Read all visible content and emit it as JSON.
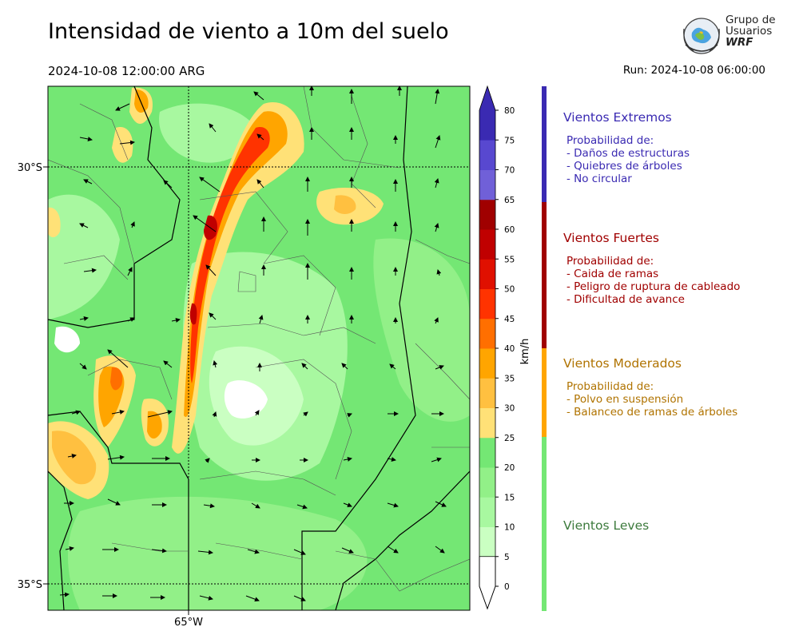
{
  "header": {
    "title": "Intensidad de viento a 10m del suelo",
    "valid_time": "2024-10-08 12:00:00 ARG",
    "run_time": "Run: 2024-10-08 06:00:00"
  },
  "logo": {
    "line1": "Grupo de",
    "line2": "Usuarios",
    "line3": "WRF"
  },
  "map": {
    "lat_labels": [
      "30°S",
      "35°S"
    ],
    "lon_labels": [
      "65°W"
    ],
    "background_color": "#74e774"
  },
  "colorbar": {
    "unit_label": "km/h",
    "ticks": [
      "0",
      "5",
      "10",
      "15",
      "20",
      "25",
      "30",
      "35",
      "40",
      "45",
      "50",
      "55",
      "60",
      "65",
      "70",
      "75",
      "80"
    ],
    "colors": [
      "#ffffff",
      "#caffc2",
      "#a8f8a0",
      "#92f088",
      "#74e774",
      "#ffe177",
      "#ffc040",
      "#ffa500",
      "#ff6f00",
      "#ff3300",
      "#e01000",
      "#c00000",
      "#a00000",
      "#7060d8",
      "#5848d0",
      "#4030c0",
      "#3a2ab2"
    ]
  },
  "categories": [
    {
      "title": "Vientos Extremos",
      "color": "#3a2ab2",
      "lines": [
        "Probabilidad de:",
        "- Daños de estructuras",
        "- Quiebres de árboles",
        "- No circular"
      ]
    },
    {
      "title": "Vientos Fuertes",
      "color": "#a00000",
      "lines": [
        "Probabilidad de:",
        "- Caida de ramas",
        "- Peligro de ruptura de cableado",
        "- Dificultad de avance"
      ]
    },
    {
      "title": "Vientos Moderados",
      "color": "#b07300",
      "bar_color": "#ffa500",
      "lines": [
        "Probabilidad de:",
        "- Polvo en suspensión",
        "- Balanceo de ramas de árboles"
      ]
    },
    {
      "title": "Vientos Leves",
      "color": "#3c7a3c",
      "bar_color": "#74e774",
      "lines": []
    }
  ]
}
